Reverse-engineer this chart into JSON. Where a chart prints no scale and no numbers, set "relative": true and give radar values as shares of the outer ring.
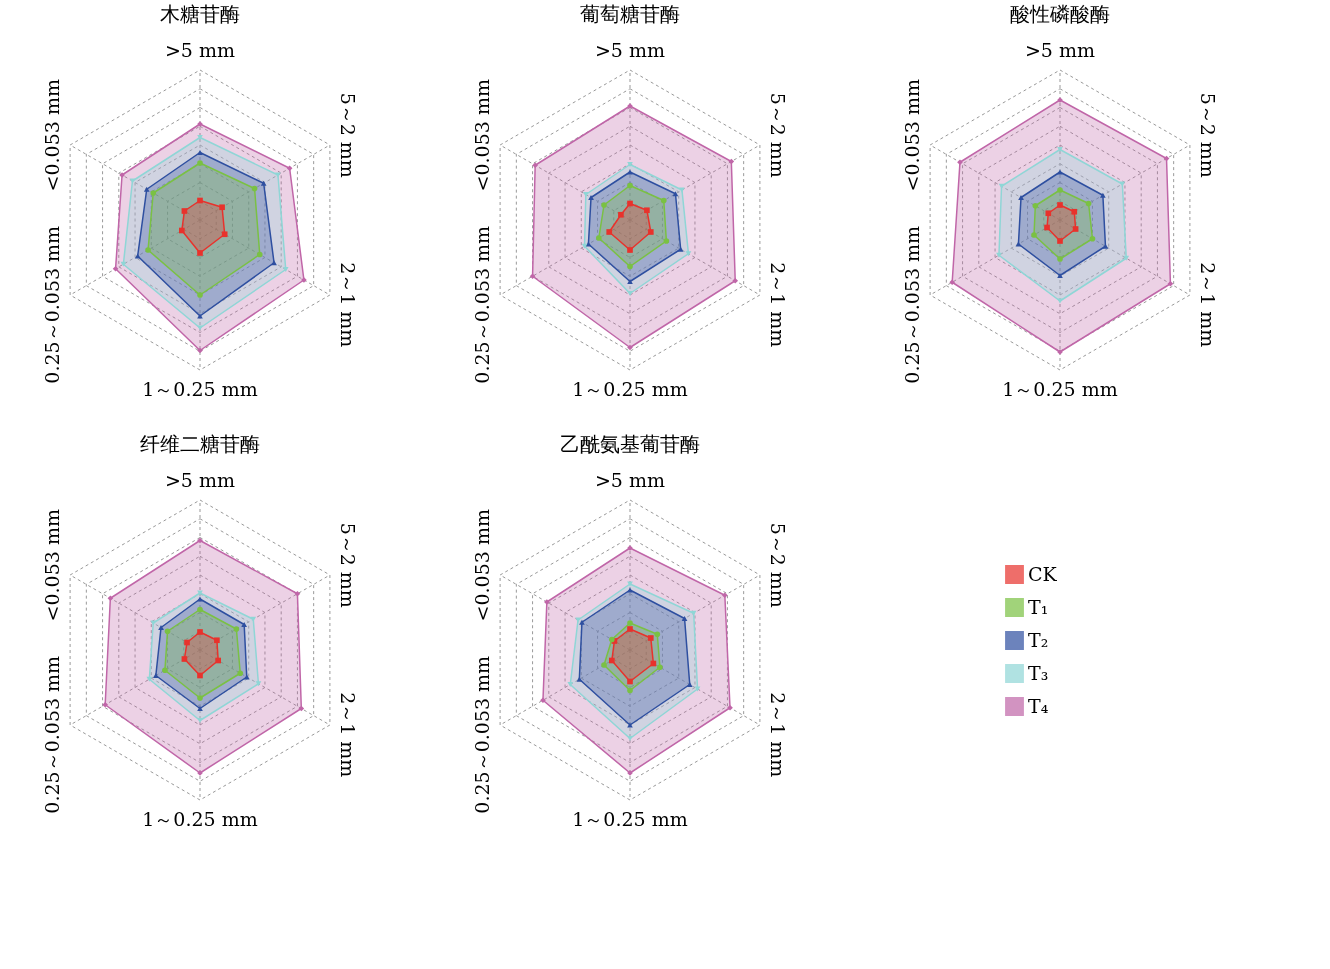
{
  "chart_data": [
    {
      "type": "radar",
      "title": "木糖苷酶",
      "relative": true,
      "grid": true,
      "legend": "bottom right",
      "categories": [
        ">5 mm",
        "5～2 mm",
        "2～1 mm",
        "1～0.25 mm",
        "0.25～0.053 mm",
        "<0.053 mm"
      ],
      "series": [
        {
          "name": "CK",
          "color": "#e8322c",
          "marker": "square",
          "values": [
            0.13,
            0.17,
            0.19,
            0.22,
            0.14,
            0.12
          ]
        },
        {
          "name": "T₁",
          "color": "#7ac143",
          "marker": "circle",
          "values": [
            0.38,
            0.42,
            0.46,
            0.5,
            0.4,
            0.36
          ]
        },
        {
          "name": "T₂",
          "color": "#2e4fa0",
          "marker": "triangle",
          "values": [
            0.45,
            0.49,
            0.57,
            0.64,
            0.48,
            0.41
          ]
        },
        {
          "name": "T₃",
          "color": "#8fd6d6",
          "marker": "triangle-down",
          "values": [
            0.55,
            0.6,
            0.66,
            0.72,
            0.59,
            0.52
          ]
        },
        {
          "name": "T₄",
          "color": "#c066a8",
          "marker": "diamond",
          "values": [
            0.64,
            0.69,
            0.8,
            0.87,
            0.65,
            0.6
          ]
        }
      ]
    },
    {
      "type": "radar",
      "title": "葡萄糖苷酶",
      "relative": true,
      "grid": true,
      "categories": [
        ">5 mm",
        "5～2 mm",
        "2～1 mm",
        "1～0.25 mm",
        "0.25～0.053 mm",
        "<0.053 mm"
      ],
      "series": [
        {
          "name": "CK",
          "color": "#e8322c",
          "marker": "square",
          "values": [
            0.11,
            0.13,
            0.16,
            0.2,
            0.16,
            0.07
          ]
        },
        {
          "name": "T₁",
          "color": "#7ac143",
          "marker": "circle",
          "values": [
            0.23,
            0.26,
            0.28,
            0.31,
            0.24,
            0.2
          ]
        },
        {
          "name": "T₂",
          "color": "#2e4fa0",
          "marker": "triangle",
          "values": [
            0.32,
            0.35,
            0.39,
            0.41,
            0.32,
            0.3
          ]
        },
        {
          "name": "T₃",
          "color": "#8fd6d6",
          "marker": "triangle-down",
          "values": [
            0.37,
            0.4,
            0.45,
            0.49,
            0.35,
            0.34
          ]
        },
        {
          "name": "T₄",
          "color": "#c066a8",
          "marker": "diamond",
          "values": [
            0.76,
            0.78,
            0.81,
            0.85,
            0.75,
            0.73
          ]
        }
      ]
    },
    {
      "type": "radar",
      "title": "酸性磷酸酶",
      "relative": true,
      "grid": true,
      "categories": [
        ">5 mm",
        "5～2 mm",
        "2～1 mm",
        "1～0.25 mm",
        "0.25～0.053 mm",
        "<0.053 mm"
      ],
      "series": [
        {
          "name": "CK",
          "color": "#e8322c",
          "marker": "square",
          "values": [
            0.1,
            0.11,
            0.12,
            0.14,
            0.1,
            0.09
          ]
        },
        {
          "name": "T₁",
          "color": "#7ac143",
          "marker": "circle",
          "values": [
            0.2,
            0.22,
            0.25,
            0.26,
            0.2,
            0.19
          ]
        },
        {
          "name": "T₂",
          "color": "#2e4fa0",
          "marker": "triangle",
          "values": [
            0.32,
            0.33,
            0.35,
            0.37,
            0.32,
            0.3
          ]
        },
        {
          "name": "T₃",
          "color": "#8fd6d6",
          "marker": "triangle-down",
          "values": [
            0.47,
            0.48,
            0.51,
            0.54,
            0.47,
            0.45
          ]
        },
        {
          "name": "T₄",
          "color": "#c066a8",
          "marker": "diamond",
          "values": [
            0.8,
            0.82,
            0.85,
            0.88,
            0.83,
            0.77
          ]
        }
      ]
    },
    {
      "type": "radar",
      "title": "纤维二糖苷酶",
      "relative": true,
      "grid": true,
      "categories": [
        ">5 mm",
        "5～2 mm",
        "2～1 mm",
        "1～0.25 mm",
        "0.25～0.053 mm",
        "<0.053 mm"
      ],
      "series": [
        {
          "name": "CK",
          "color": "#e8322c",
          "marker": "square",
          "values": [
            0.12,
            0.13,
            0.14,
            0.17,
            0.12,
            0.1
          ]
        },
        {
          "name": "T₁",
          "color": "#7ac143",
          "marker": "circle",
          "values": [
            0.27,
            0.28,
            0.31,
            0.32,
            0.27,
            0.25
          ]
        },
        {
          "name": "T₂",
          "color": "#2e4fa0",
          "marker": "triangle",
          "values": [
            0.34,
            0.34,
            0.36,
            0.39,
            0.34,
            0.3
          ]
        },
        {
          "name": "T₃",
          "color": "#8fd6d6",
          "marker": "triangle-down",
          "values": [
            0.38,
            0.41,
            0.45,
            0.47,
            0.39,
            0.36
          ]
        },
        {
          "name": "T₄",
          "color": "#c066a8",
          "marker": "diamond",
          "values": [
            0.73,
            0.75,
            0.78,
            0.82,
            0.73,
            0.69
          ]
        }
      ]
    },
    {
      "type": "radar",
      "title": "乙酰氨基葡苷酶",
      "relative": true,
      "grid": true,
      "categories": [
        ">5 mm",
        "5～2 mm",
        "2～1 mm",
        "1～0.25 mm",
        "0.25～0.053 mm",
        "<0.053 mm"
      ],
      "series": [
        {
          "name": "CK",
          "color": "#e8322c",
          "marker": "square",
          "values": [
            0.14,
            0.16,
            0.18,
            0.21,
            0.14,
            0.12
          ]
        },
        {
          "name": "T₁",
          "color": "#7ac143",
          "marker": "circle",
          "values": [
            0.18,
            0.21,
            0.23,
            0.27,
            0.2,
            0.14
          ]
        },
        {
          "name": "T₂",
          "color": "#2e4fa0",
          "marker": "triangle",
          "values": [
            0.4,
            0.42,
            0.46,
            0.5,
            0.39,
            0.37
          ]
        },
        {
          "name": "T₃",
          "color": "#8fd6d6",
          "marker": "triangle-down",
          "values": [
            0.44,
            0.49,
            0.52,
            0.59,
            0.46,
            0.4
          ]
        },
        {
          "name": "T₄",
          "color": "#c066a8",
          "marker": "diamond",
          "values": [
            0.68,
            0.73,
            0.77,
            0.82,
            0.67,
            0.64
          ]
        }
      ]
    }
  ]
}
